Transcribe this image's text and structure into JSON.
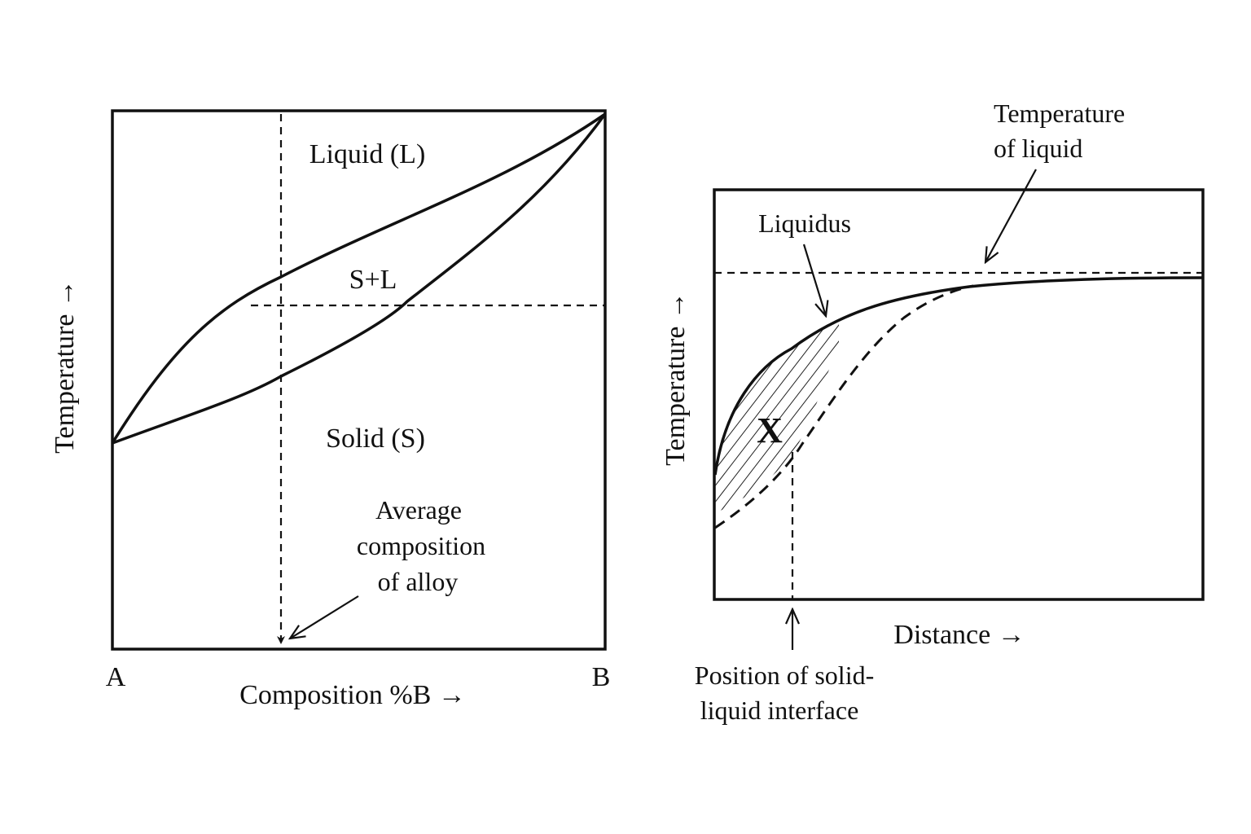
{
  "left_diagram": {
    "axis_y_label": "Temperature →",
    "axis_x_label": "Composition  %B →",
    "corner_left": "A",
    "corner_right": "B",
    "region_liquid": "Liquid (L)",
    "region_two_phase": "S+L",
    "region_solid": "Solid (S)",
    "annotation_lines": [
      "Average",
      "composition",
      "of alloy"
    ]
  },
  "right_diagram": {
    "axis_y_label": "Temperature →",
    "axis_x_label": "Distance →",
    "label_liquidus": "Liquidus",
    "label_temp_liquid_lines": [
      "Temperature",
      "of liquid"
    ],
    "label_region": "X",
    "label_interface_lines": [
      "Position of solid-",
      "liquid interface"
    ]
  }
}
